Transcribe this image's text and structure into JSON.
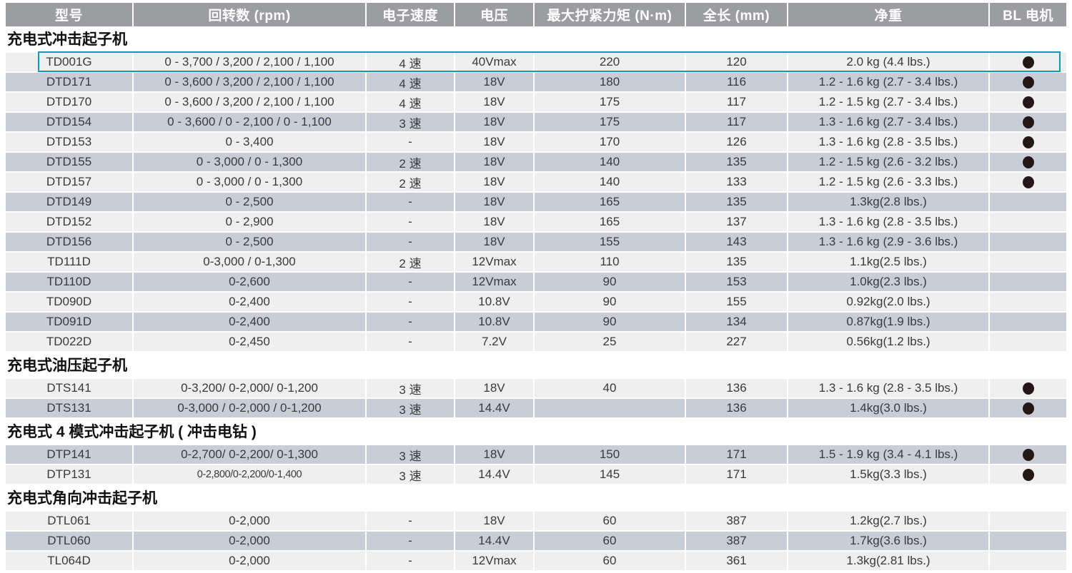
{
  "colors": {
    "header_bg": "#9c9da0",
    "row_light": "#efeff0",
    "row_shaded": "#c9cdd8",
    "highlight_border": "#1699ae",
    "bl_dot": "#231815",
    "header_text": "#ffffff",
    "body_text": "#3a3a3a"
  },
  "table": {
    "columns": [
      {
        "key": "model",
        "label": "型号"
      },
      {
        "key": "rpm",
        "label": "回转数 (rpm)"
      },
      {
        "key": "speed",
        "label": "电子速度"
      },
      {
        "key": "voltage",
        "label": "电压"
      },
      {
        "key": "torque",
        "label": "最大拧紧力矩 (N·m)"
      },
      {
        "key": "length",
        "label": "全长 (mm)"
      },
      {
        "key": "weight",
        "label": "净重"
      },
      {
        "key": "bl",
        "label": "BL 电机"
      }
    ],
    "sections": [
      {
        "title": "充电式冲击起子机",
        "rows": [
          {
            "model": "TD001G",
            "rpm": "0 - 3,700 / 3,200 / 2,100 / 1,100",
            "speed": "4 速",
            "voltage": "40Vmax",
            "torque": "220",
            "length": "120",
            "weight": "2.0 kg (4.4 lbs.)",
            "bl": true,
            "shaded": false,
            "highlighted": true
          },
          {
            "model": "DTD171",
            "rpm": "0 - 3,600 / 3,200 / 2,100 / 1,100",
            "speed": "4 速",
            "voltage": "18V",
            "torque": "180",
            "length": "116",
            "weight": "1.2 - 1.6 kg (2.7 - 3.4 lbs.)",
            "bl": true,
            "shaded": true
          },
          {
            "model": "DTD170",
            "rpm": "0 - 3,600 / 3,200 / 2,100 / 1,100",
            "speed": "4 速",
            "voltage": "18V",
            "torque": "175",
            "length": "117",
            "weight": "1.2 - 1.5 kg (2.7 - 3.4 lbs.)",
            "bl": true,
            "shaded": false
          },
          {
            "model": "DTD154",
            "rpm": "0 - 3,600 / 0 - 2,100 / 0 - 1,100",
            "speed": "3 速",
            "voltage": "18V",
            "torque": "175",
            "length": "117",
            "weight": "1.3 - 1.6 kg (2.7 - 3.4 lbs.)",
            "bl": true,
            "shaded": true
          },
          {
            "model": "DTD153",
            "rpm": "0 - 3,400",
            "speed": "-",
            "voltage": "18V",
            "torque": "170",
            "length": "126",
            "weight": "1.3 - 1.6 kg (2.8 - 3.5 lbs.)",
            "bl": true,
            "shaded": false
          },
          {
            "model": "DTD155",
            "rpm": "0 - 3,000 / 0 - 1,300",
            "speed": "2 速",
            "voltage": "18V",
            "torque": "140",
            "length": "135",
            "weight": "1.2 - 1.5 kg (2.6 - 3.2 lbs.)",
            "bl": true,
            "shaded": true
          },
          {
            "model": "DTD157",
            "rpm": "0 - 3,000 / 0 - 1,300",
            "speed": "2 速",
            "voltage": "18V",
            "torque": "140",
            "length": "133",
            "weight": "1.2 - 1.5 kg (2.6 - 3.3 lbs.)",
            "bl": true,
            "shaded": false
          },
          {
            "model": "DTD149",
            "rpm": "0 - 2,500",
            "speed": "-",
            "voltage": "18V",
            "torque": "165",
            "length": "135",
            "weight": "1.3kg(2.8 lbs.)",
            "bl": false,
            "shaded": true
          },
          {
            "model": "DTD152",
            "rpm": "0 - 2,900",
            "speed": "-",
            "voltage": "18V",
            "torque": "165",
            "length": "137",
            "weight": "1.3 - 1.6 kg (2.8 - 3.5 lbs.)",
            "bl": false,
            "shaded": false
          },
          {
            "model": "DTD156",
            "rpm": "0 - 2,500",
            "speed": "-",
            "voltage": "18V",
            "torque": "155",
            "length": "143",
            "weight": "1.3 - 1.6 kg (2.9 - 3.6 lbs.)",
            "bl": false,
            "shaded": true
          },
          {
            "model": "TD111D",
            "rpm": "0-3,000 / 0-1,300",
            "speed": "2 速",
            "voltage": "12Vmax",
            "torque": "110",
            "length": "135",
            "weight": "1.1kg(2.5 lbs.)",
            "bl": false,
            "shaded": false
          },
          {
            "model": "TD110D",
            "rpm": "0-2,600",
            "speed": "-",
            "voltage": "12Vmax",
            "torque": "90",
            "length": "153",
            "weight": "1.0kg(2.3 lbs.)",
            "bl": false,
            "shaded": true
          },
          {
            "model": "TD090D",
            "rpm": "0-2,400",
            "speed": "-",
            "voltage": "10.8V",
            "torque": "90",
            "length": "155",
            "weight": "0.92kg(2.0 lbs.)",
            "bl": false,
            "shaded": false
          },
          {
            "model": "TD091D",
            "rpm": "0-2,400",
            "speed": "-",
            "voltage": "10.8V",
            "torque": "90",
            "length": "134",
            "weight": "0.87kg(1.9 lbs.)",
            "bl": false,
            "shaded": true
          },
          {
            "model": "TD022D",
            "rpm": "0-2,450",
            "speed": "-",
            "voltage": "7.2V",
            "torque": "25",
            "length": "227",
            "weight": "0.56kg(1.2 lbs.)",
            "bl": false,
            "shaded": false
          }
        ]
      },
      {
        "title": "充电式油压起子机",
        "rows": [
          {
            "model": "DTS141",
            "rpm": "0-3,200/ 0-2,000/ 0-1,200",
            "speed": "3 速",
            "voltage": "18V",
            "torque": "40",
            "length": "136",
            "weight": "1.3 - 1.6 kg (2.8 - 3.5 lbs.)",
            "bl": true,
            "shaded": false
          },
          {
            "model": "DTS131",
            "rpm": "0-3,000 / 0-2,000 / 0-1,200",
            "speed": "3 速",
            "voltage": "14.4V",
            "torque": "",
            "length": "136",
            "weight": "1.4kg(3.0 lbs.)",
            "bl": true,
            "shaded": true
          }
        ]
      },
      {
        "title": "充电式 4 模式冲击起子机 ( 冲击电钻 )",
        "rows": [
          {
            "model": "DTP141",
            "rpm": "0-2,700/ 0-2,200/ 0-1,300",
            "speed": "3 速",
            "voltage": "18V",
            "torque": "150",
            "length": "171",
            "weight": "1.5 - 1.9 kg (3.4 - 4.1 lbs.)",
            "bl": true,
            "shaded": true
          },
          {
            "model": "DTP131",
            "rpm": "0-2,800/0-2,200/0-1,400",
            "speed": "3 速",
            "voltage": "14.4V",
            "torque": "145",
            "length": "171",
            "weight": "1.5kg(3.3 lbs.)",
            "bl": true,
            "shaded": false,
            "rpm_condensed": true
          }
        ]
      },
      {
        "title": "充电式角向冲击起子机",
        "rows": [
          {
            "model": "DTL061",
            "rpm": "0-2,000",
            "speed": "-",
            "voltage": "18V",
            "torque": "60",
            "length": "387",
            "weight": "1.2kg(2.7 lbs.)",
            "bl": false,
            "shaded": false
          },
          {
            "model": "DTL060",
            "rpm": "0-2,000",
            "speed": "-",
            "voltage": "14.4V",
            "torque": "60",
            "length": "387",
            "weight": "1.7kg(3.6 lbs.)",
            "bl": false,
            "shaded": true
          },
          {
            "model": "TL064D",
            "rpm": "0-2,000",
            "speed": "-",
            "voltage": "12Vmax",
            "torque": "60",
            "length": "361",
            "weight": "1.3kg(2.81 lbs.)",
            "bl": false,
            "shaded": false
          }
        ]
      }
    ]
  }
}
